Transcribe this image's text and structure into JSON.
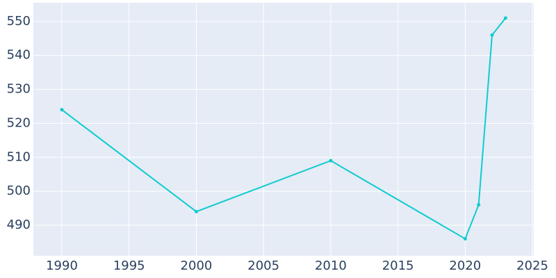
{
  "chart_data": {
    "type": "line",
    "x": [
      1990,
      2000,
      2010,
      2020,
      2021,
      2022,
      2023
    ],
    "series": [
      {
        "color": "#0fcbd0",
        "values": [
          524,
          494,
          509,
          486,
          496,
          546,
          551
        ]
      }
    ],
    "xlim": [
      1987.88,
      2025.1
    ],
    "xticks": [
      1990,
      1995,
      2000,
      2005,
      2010,
      2015,
      2020,
      2025
    ],
    "ylim": [
      481,
      555.5
    ],
    "yticks": [
      490,
      500,
      510,
      520,
      530,
      540,
      550
    ],
    "grid": true
  }
}
